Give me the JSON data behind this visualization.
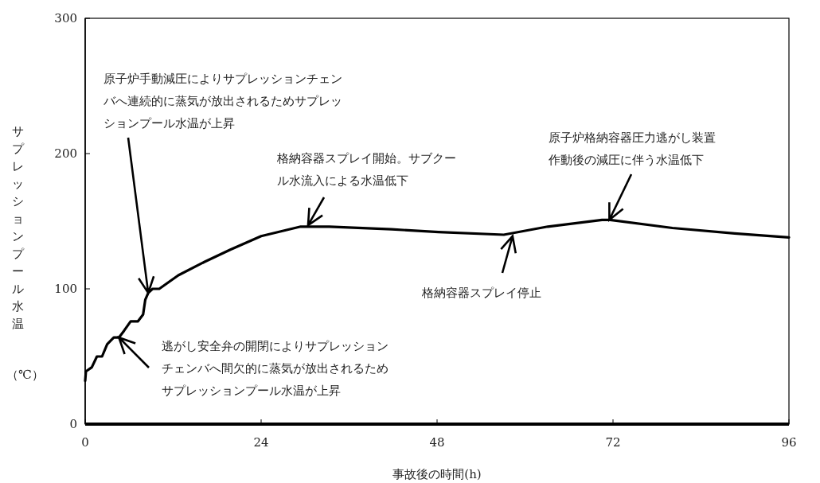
{
  "chart_data": {
    "type": "line",
    "xlabel": "事故後の時間(h)",
    "ylabel": "サプレッションプール水温",
    "x": [
      0,
      0.1,
      0.9,
      1.6,
      2.3,
      3,
      3.9,
      4.6,
      5.3,
      6.2,
      7.2,
      7.9,
      8.2,
      8.6,
      9.2,
      10.1,
      12.7,
      16.3,
      19.8,
      24,
      29.4,
      33.3,
      41.8,
      48.2,
      57.1,
      63.1,
      70.5,
      71.6,
      80.1,
      88.6,
      96
    ],
    "series": [
      {
        "color": "#000000",
        "values": [
          32,
          39,
          42,
          50,
          50,
          59,
          64,
          64,
          69,
          76,
          76,
          81,
          92,
          97,
          100,
          100,
          110,
          120,
          129,
          139,
          146,
          146,
          144,
          142,
          140,
          146,
          151,
          151,
          145,
          141,
          138
        ]
      }
    ],
    "xlim": [
      0,
      96
    ],
    "xticks": [
      0,
      24,
      48,
      72,
      96
    ],
    "ylim": [
      0,
      300
    ],
    "yticks": [
      0,
      100,
      200,
      300
    ],
    "annotations": [
      {
        "text": "原子炉手動減圧によりサプレッションチェンバへ連続的に蒸気が放出されるためサプレッションプール水温が上昇",
        "x": 8.6,
        "y": 97
      },
      {
        "text": "逃がし安全弁の開閉によりサプレッションチェンバへ間欠的に蒸気が放出されるためサプレッションプール水温が上昇",
        "x": 4.6,
        "y": 64
      },
      {
        "text": "格納容器スプレイ開始。サブクール水流入による水温低下",
        "x": 30.4,
        "y": 147
      },
      {
        "text": "格納容器スプレイ停止",
        "x": 58.3,
        "y": 139
      },
      {
        "text": "原子炉格納容器圧力逃がし装置作動後の減圧に伴う水温低下",
        "x": 71.5,
        "y": 151
      },
      "（℃）"
    ]
  }
}
